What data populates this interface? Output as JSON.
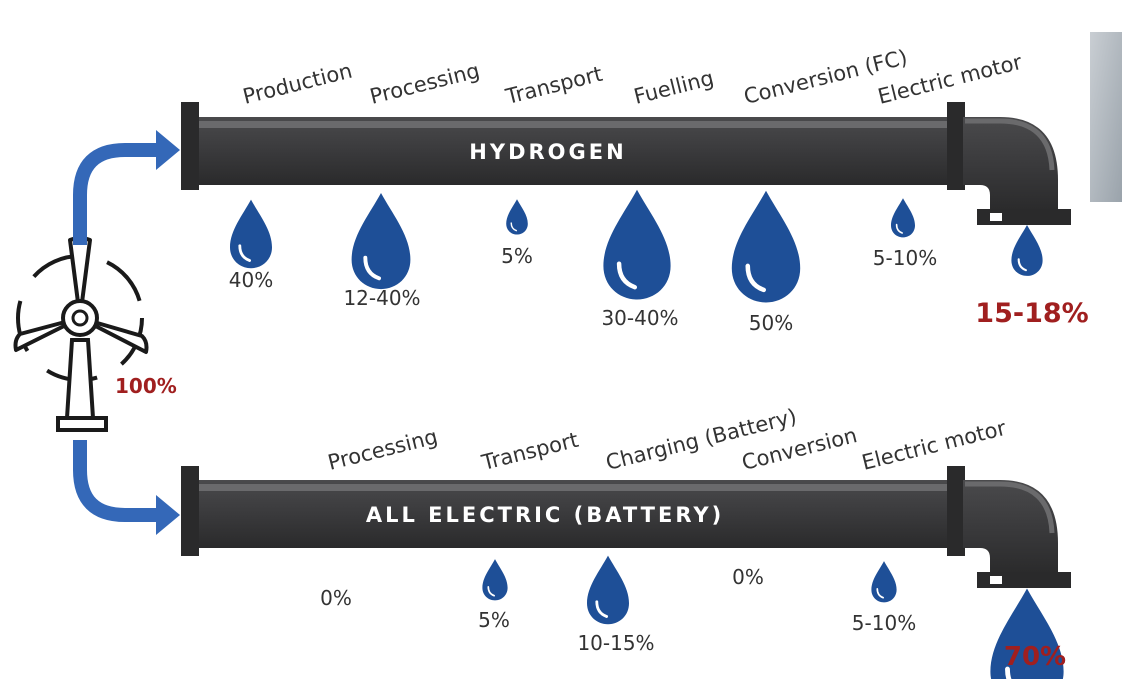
{
  "colors": {
    "pipe": "#3b3b3d",
    "pipe_dark": "#1f1f20",
    "drop": "#1e4f97",
    "arrow": "#3468b8",
    "total": "#a01f1f",
    "text": "#333333"
  },
  "source": {
    "icon": "wind-turbine-icon",
    "percent": "100%"
  },
  "hydrogen": {
    "title": "HYDROGEN",
    "total": "15-18%",
    "stages": [
      {
        "label": "Production",
        "loss": "40%",
        "loss_value": 40
      },
      {
        "label": "Processing",
        "loss": "12-40%",
        "loss_value": 26
      },
      {
        "label": "Transport",
        "loss": "5%",
        "loss_value": 5
      },
      {
        "label": "Fuelling",
        "loss": "30-40%",
        "loss_value": 35
      },
      {
        "label": "Conversion (FC)",
        "loss": "50%",
        "loss_value": 50
      },
      {
        "label": "Electric motor",
        "loss": "5-10%",
        "loss_value": 7.5
      }
    ]
  },
  "electric": {
    "title": "ALL ELECTRIC (BATTERY)",
    "total": "70%",
    "stages": [
      {
        "label": "Processing",
        "loss": "0%",
        "loss_value": 0
      },
      {
        "label": "Transport",
        "loss": "5%",
        "loss_value": 5
      },
      {
        "label": "Charging (Battery)",
        "loss": "10-15%",
        "loss_value": 12.5
      },
      {
        "label": "Conversion",
        "loss": "0%",
        "loss_value": 0
      },
      {
        "label": "Electric motor",
        "loss": "5-10%",
        "loss_value": 7.5
      }
    ]
  }
}
